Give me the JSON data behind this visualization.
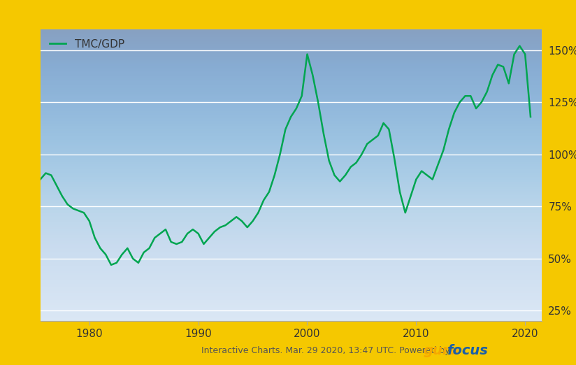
{
  "title": "",
  "xlabel": "",
  "ylabel": "",
  "legend_label": "TMC/GDP",
  "line_color": "#00a550",
  "background_top": "#c8d8f0",
  "background_bottom": "#dce8f8",
  "plot_bg_top": "#b8cce4",
  "plot_bg_bottom": "#ddeeff",
  "grid_color": "#ffffff",
  "footer_text": "Interactive Charts. Mar. 29 2020, 13:47 UTC. Powered by",
  "outer_border_color": "#e8a800",
  "yticks": [
    25,
    50,
    75,
    100,
    125,
    150
  ],
  "xticks": [
    1980,
    1990,
    2000,
    2010,
    2020
  ],
  "ylim": [
    20,
    160
  ],
  "xlim_start": 1975.5,
  "xlim_end": 2021.5,
  "data": {
    "years": [
      1975.5,
      1976.0,
      1976.5,
      1977.0,
      1977.5,
      1978.0,
      1978.5,
      1979.0,
      1979.5,
      1980.0,
      1980.5,
      1981.0,
      1981.5,
      1982.0,
      1982.5,
      1983.0,
      1983.5,
      1984.0,
      1984.5,
      1985.0,
      1985.5,
      1986.0,
      1986.5,
      1987.0,
      1987.5,
      1988.0,
      1988.5,
      1989.0,
      1989.5,
      1990.0,
      1990.5,
      1991.0,
      1991.5,
      1992.0,
      1992.5,
      1993.0,
      1993.5,
      1994.0,
      1994.5,
      1995.0,
      1995.5,
      1996.0,
      1996.5,
      1997.0,
      1997.5,
      1998.0,
      1998.5,
      1999.0,
      1999.5,
      2000.0,
      2000.5,
      2001.0,
      2001.5,
      2002.0,
      2002.5,
      2003.0,
      2003.5,
      2004.0,
      2004.5,
      2005.0,
      2005.5,
      2006.0,
      2006.5,
      2007.0,
      2007.5,
      2008.0,
      2008.5,
      2009.0,
      2009.5,
      2010.0,
      2010.5,
      2011.0,
      2011.5,
      2012.0,
      2012.5,
      2013.0,
      2013.5,
      2014.0,
      2014.5,
      2015.0,
      2015.5,
      2016.0,
      2016.5,
      2017.0,
      2017.5,
      2018.0,
      2018.5,
      2019.0,
      2019.5,
      2020.0,
      2020.5
    ],
    "values": [
      88,
      91,
      90,
      85,
      80,
      76,
      74,
      73,
      72,
      68,
      60,
      55,
      52,
      47,
      48,
      52,
      55,
      50,
      48,
      53,
      55,
      60,
      62,
      64,
      58,
      57,
      58,
      62,
      64,
      62,
      57,
      60,
      63,
      65,
      66,
      68,
      70,
      68,
      65,
      68,
      72,
      78,
      82,
      90,
      100,
      112,
      118,
      122,
      128,
      148,
      138,
      125,
      110,
      97,
      90,
      87,
      90,
      94,
      96,
      100,
      105,
      107,
      109,
      115,
      112,
      98,
      82,
      72,
      80,
      88,
      92,
      90,
      88,
      95,
      102,
      112,
      120,
      125,
      128,
      128,
      122,
      125,
      130,
      138,
      143,
      142,
      134,
      148,
      152,
      148,
      118
    ]
  }
}
